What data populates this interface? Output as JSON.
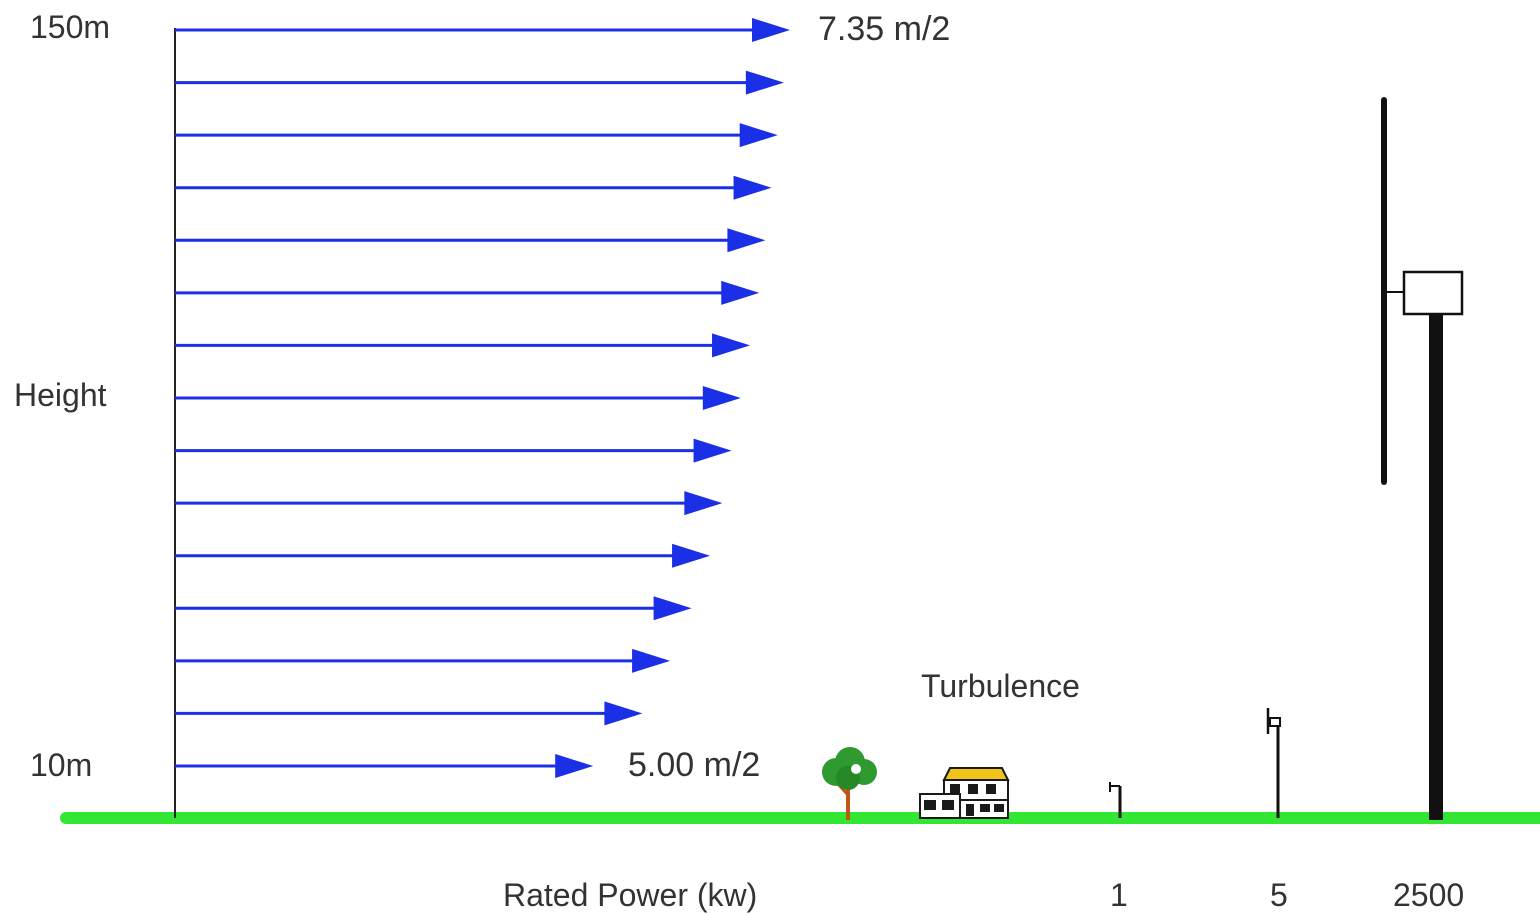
{
  "labels": {
    "top_height": "150m",
    "bottom_height": "10m",
    "axis_label": "Height",
    "top_speed": "7.35 m/2",
    "bottom_speed": "5.00 m/2",
    "turbulence": "Turbulence",
    "x_axis_label": "Rated Power (kw)"
  },
  "turbines": [
    {
      "rated_power": "1"
    },
    {
      "rated_power": "5"
    },
    {
      "rated_power": "2500"
    }
  ],
  "wind_profile": {
    "arrow_count": 15,
    "arrow_relative_lengths": [
      1.0,
      0.99,
      0.98,
      0.97,
      0.96,
      0.95,
      0.935,
      0.92,
      0.905,
      0.89,
      0.87,
      0.84,
      0.805,
      0.76,
      0.68
    ]
  },
  "colors": {
    "arrow": "#1a2fe6",
    "ground": "#33e633",
    "axis": "#222222",
    "tower": "#111111"
  },
  "icons": {
    "tree": "tree-icon",
    "house": "house-icon"
  }
}
